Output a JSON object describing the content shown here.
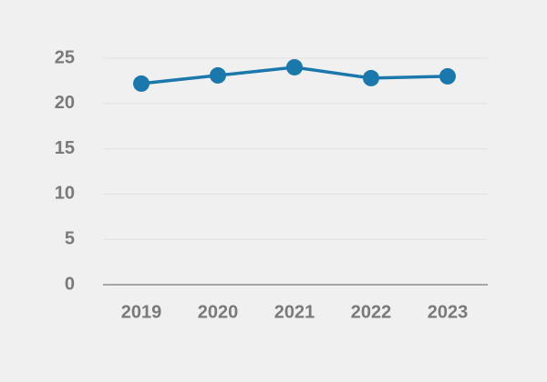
{
  "chart_data": {
    "type": "line",
    "categories": [
      "2019",
      "2020",
      "2021",
      "2022",
      "2023"
    ],
    "series": [
      {
        "color": "#1b78ad",
        "values": [
          22.2,
          23.1,
          24.0,
          22.8,
          23.0
        ]
      }
    ],
    "ylim": [
      0,
      25
    ],
    "yticks": [
      0,
      5,
      10,
      15,
      20,
      25
    ],
    "grid": true
  }
}
